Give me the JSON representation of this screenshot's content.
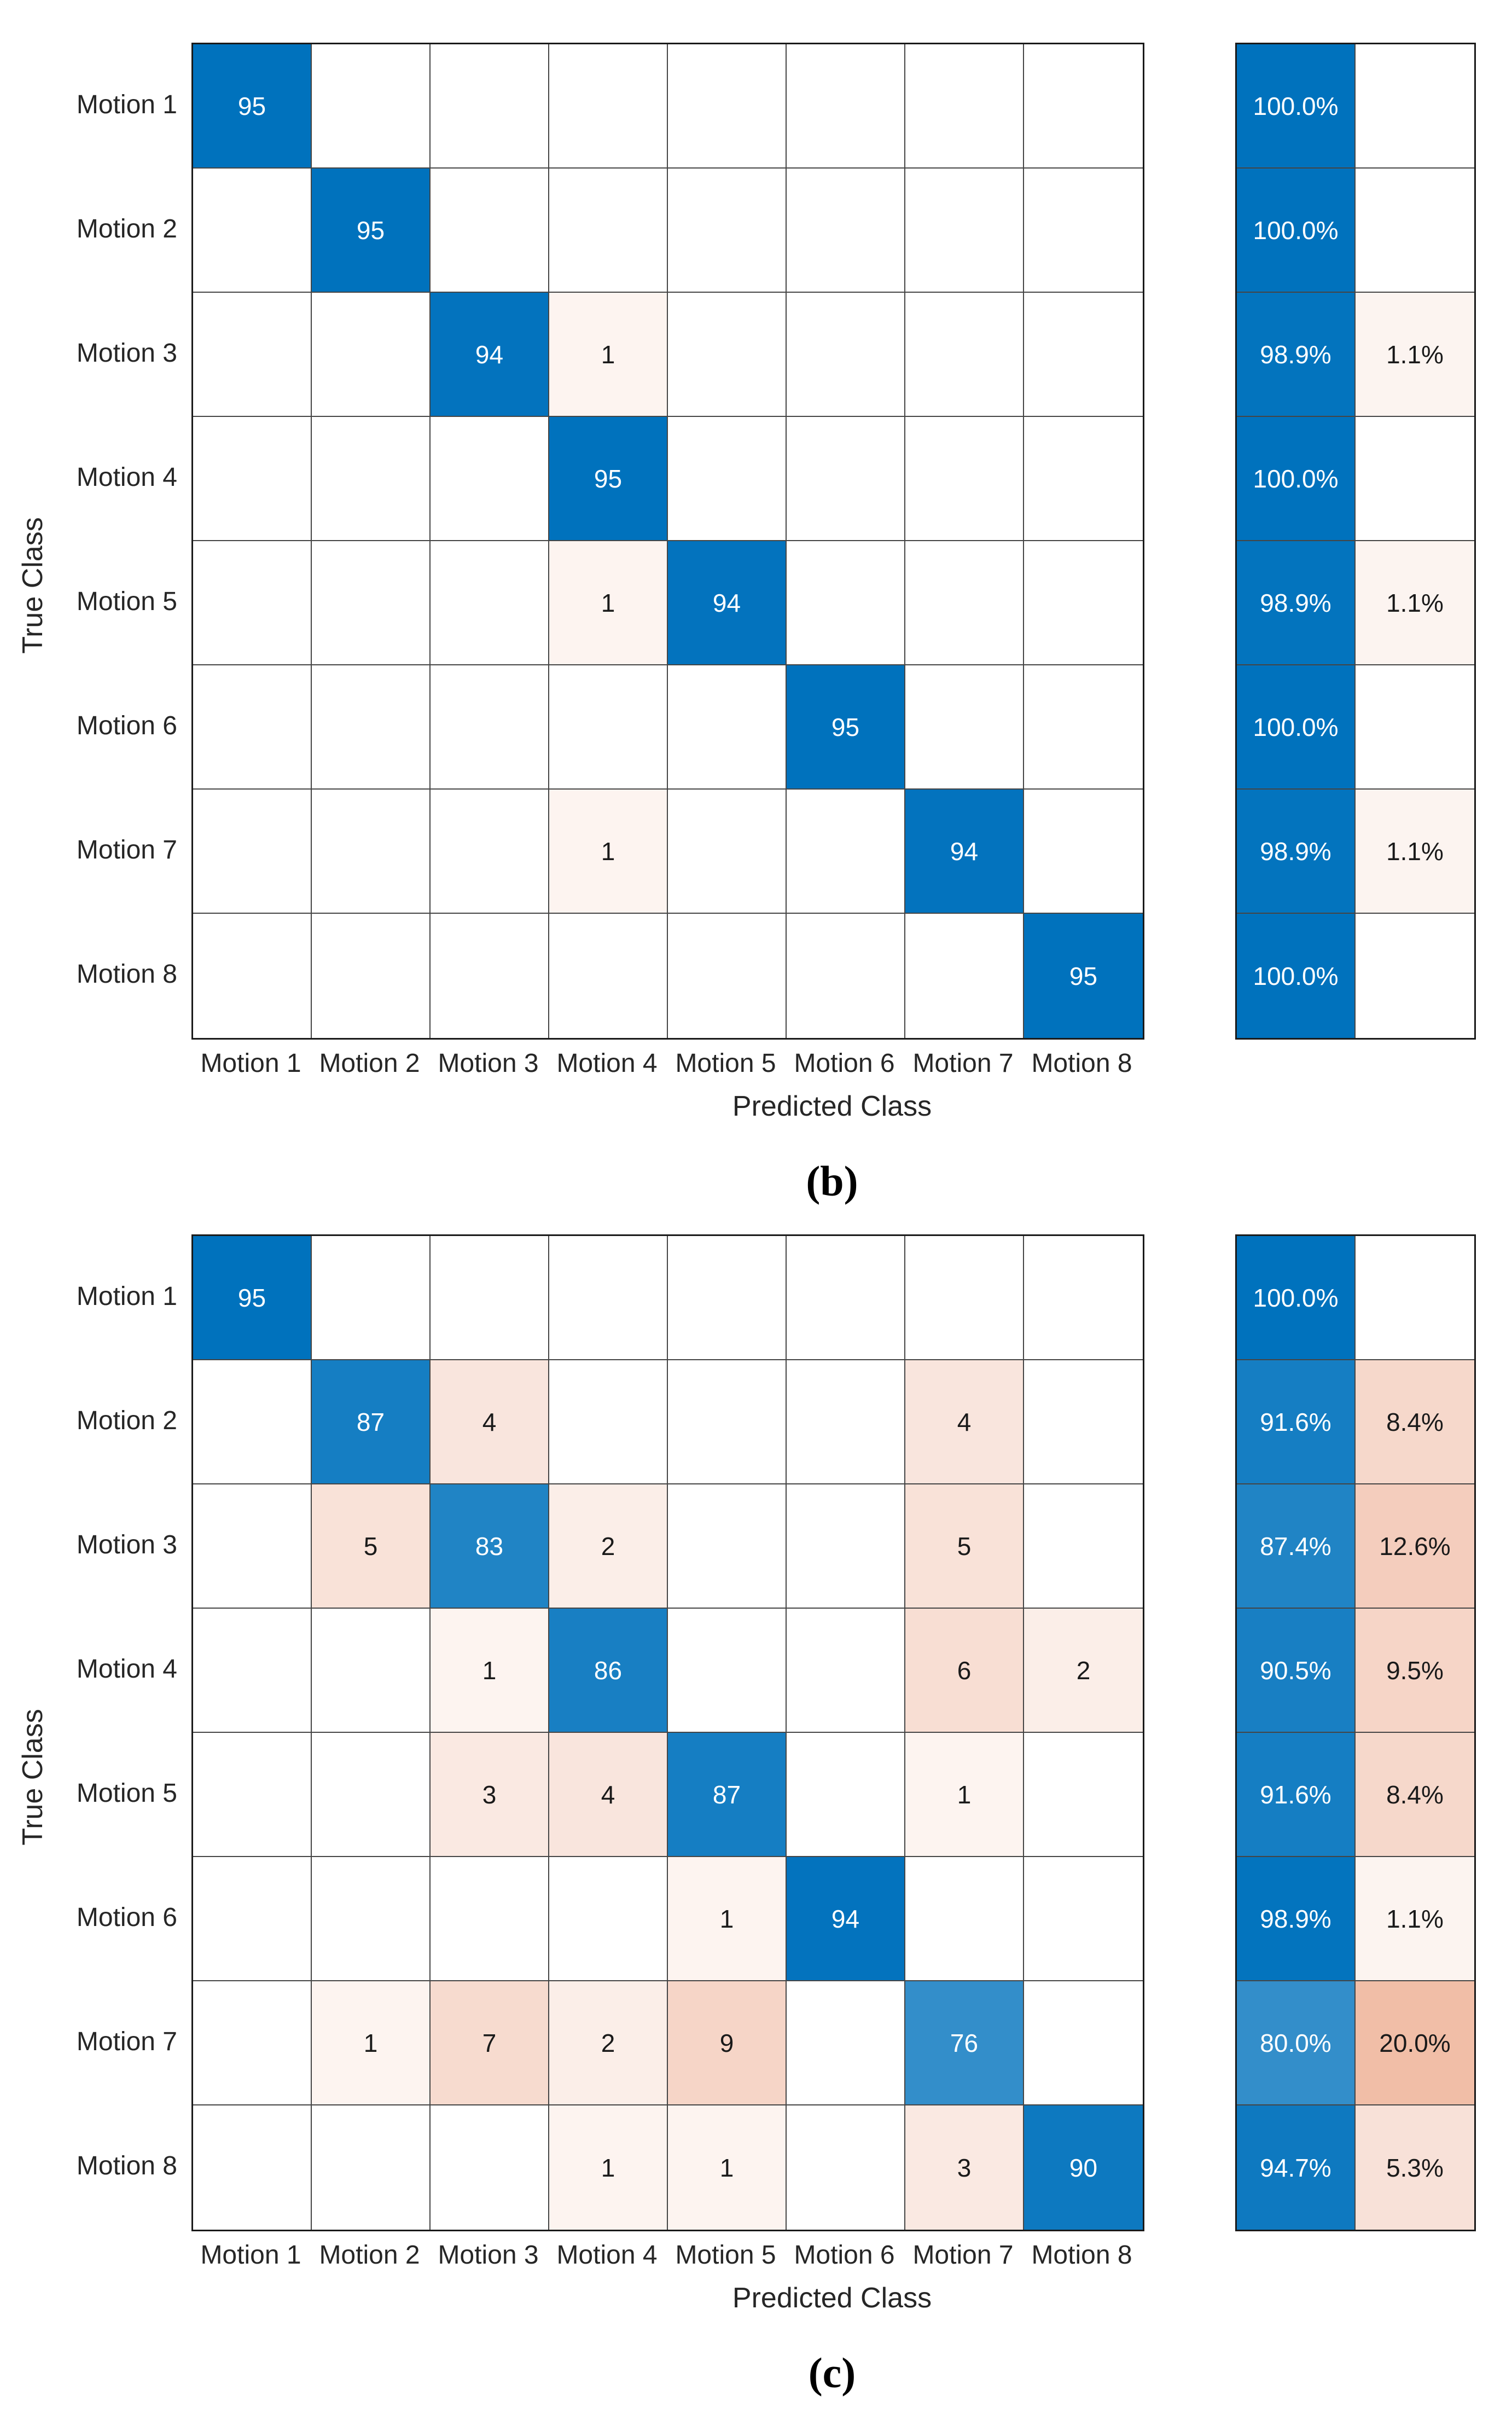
{
  "colors": {
    "diagonal_base": "#0072BD",
    "off_diagonal_base": "#D95319",
    "empty_cell": "#FFFFFF",
    "grid_line": "#454545",
    "outer_border": "#1A1A1A",
    "label_text": "#262626",
    "text_on_blue": "#FFFFFF",
    "text_on_pink": "#1A1A1A"
  },
  "chart_data": [
    {
      "type": "heatmap",
      "subtype": "confusion-matrix",
      "caption": "(b)",
      "xlabel": "Predicted Class",
      "ylabel": "True Class",
      "classes": [
        "Motion 1",
        "Motion 2",
        "Motion 3",
        "Motion 4",
        "Motion 5",
        "Motion 6",
        "Motion 7",
        "Motion 8"
      ],
      "max_count": 95,
      "matrix": [
        [
          95,
          null,
          null,
          null,
          null,
          null,
          null,
          null
        ],
        [
          null,
          95,
          null,
          null,
          null,
          null,
          null,
          null
        ],
        [
          null,
          null,
          94,
          1,
          null,
          null,
          null,
          null
        ],
        [
          null,
          null,
          null,
          95,
          null,
          null,
          null,
          null
        ],
        [
          null,
          null,
          null,
          1,
          94,
          null,
          null,
          null
        ],
        [
          null,
          null,
          null,
          null,
          null,
          95,
          null,
          null
        ],
        [
          null,
          null,
          null,
          1,
          null,
          null,
          94,
          null
        ],
        [
          null,
          null,
          null,
          null,
          null,
          null,
          null,
          95
        ]
      ],
      "row_summary_correct": [
        "100.0%",
        "100.0%",
        "98.9%",
        "100.0%",
        "98.9%",
        "100.0%",
        "98.9%",
        "100.0%"
      ],
      "row_summary_incorrect": [
        "",
        "",
        "1.1%",
        "",
        "1.1%",
        "",
        "1.1%",
        ""
      ]
    },
    {
      "type": "heatmap",
      "subtype": "confusion-matrix",
      "caption": "(c)",
      "xlabel": "Predicted Class",
      "ylabel": "True Class",
      "classes": [
        "Motion 1",
        "Motion 2",
        "Motion 3",
        "Motion 4",
        "Motion 5",
        "Motion 6",
        "Motion 7",
        "Motion 8"
      ],
      "max_count": 95,
      "matrix": [
        [
          95,
          null,
          null,
          null,
          null,
          null,
          null,
          null
        ],
        [
          null,
          87,
          4,
          null,
          null,
          null,
          4,
          null
        ],
        [
          null,
          5,
          83,
          2,
          null,
          null,
          5,
          null
        ],
        [
          null,
          null,
          1,
          86,
          null,
          null,
          6,
          2
        ],
        [
          null,
          null,
          3,
          4,
          87,
          null,
          1,
          null
        ],
        [
          null,
          null,
          null,
          null,
          1,
          94,
          null,
          null
        ],
        [
          null,
          1,
          7,
          2,
          9,
          null,
          76,
          null
        ],
        [
          null,
          null,
          null,
          1,
          1,
          null,
          3,
          90
        ]
      ],
      "row_summary_correct": [
        "100.0%",
        "91.6%",
        "87.4%",
        "90.5%",
        "91.6%",
        "98.9%",
        "80.0%",
        "94.7%"
      ],
      "row_summary_incorrect": [
        "",
        "8.4%",
        "12.6%",
        "9.5%",
        "8.4%",
        "1.1%",
        "20.0%",
        "5.3%"
      ]
    }
  ]
}
